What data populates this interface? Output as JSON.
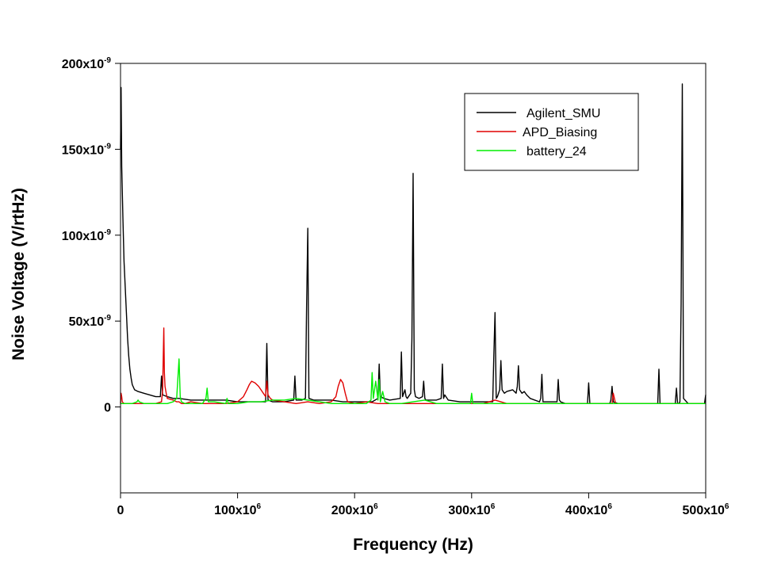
{
  "chart_data": {
    "type": "line",
    "xlabel": "Frequency (Hz)",
    "ylabel": "Noise Voltage (V/rtHz)",
    "xlim": [
      0,
      500000000
    ],
    "ylim": [
      -5e-08,
      2e-07
    ],
    "x_ticks": [
      {
        "value": 0,
        "mantissa": "0",
        "exp": ""
      },
      {
        "value": 100000000,
        "mantissa": "100x10",
        "exp": "6"
      },
      {
        "value": 200000000,
        "mantissa": "200x10",
        "exp": "6"
      },
      {
        "value": 300000000,
        "mantissa": "300x10",
        "exp": "6"
      },
      {
        "value": 400000000,
        "mantissa": "400x10",
        "exp": "6"
      },
      {
        "value": 500000000,
        "mantissa": "500x10",
        "exp": "6"
      }
    ],
    "y_ticks": [
      {
        "value": 0,
        "mantissa": "0",
        "exp": ""
      },
      {
        "value": 5e-08,
        "mantissa": "50x10",
        "exp": "-9"
      },
      {
        "value": 1e-07,
        "mantissa": "100x10",
        "exp": "-9"
      },
      {
        "value": 1.5e-07,
        "mantissa": "150x10",
        "exp": "-9"
      },
      {
        "value": 2e-07,
        "mantissa": "200x10",
        "exp": "-9"
      }
    ],
    "legend_position": "top-right",
    "grid": false,
    "series": [
      {
        "name": "Agilent_SMU",
        "color": "#000000",
        "x_mhz": [
          0,
          0.5,
          1,
          2,
          3,
          4,
          5,
          6,
          7,
          8,
          9,
          10,
          12,
          15,
          20,
          25,
          30,
          34,
          35,
          36,
          40,
          45,
          50,
          60,
          70,
          80,
          90,
          100,
          110,
          120,
          124,
          125,
          126,
          130,
          140,
          148,
          149,
          150,
          155,
          158,
          159,
          160,
          161,
          165,
          170,
          180,
          190,
          200,
          210,
          215,
          220,
          221,
          222,
          225,
          230,
          239,
          240,
          241,
          243,
          244,
          245,
          248,
          249,
          250,
          251,
          252,
          255,
          258,
          259,
          260,
          261,
          265,
          270,
          274,
          275,
          276,
          277,
          280,
          290,
          300,
          310,
          318,
          319,
          320,
          321,
          322,
          324,
          325,
          326,
          328,
          330,
          335,
          338,
          339,
          340,
          341,
          343,
          345,
          347,
          350,
          358,
          359,
          360,
          361,
          365,
          373,
          374,
          375,
          376,
          380,
          390,
          399,
          400,
          401,
          405,
          410,
          418,
          419,
          420,
          421,
          425,
          430,
          440,
          450,
          459,
          460,
          461,
          465,
          470,
          474,
          475,
          476,
          477,
          478,
          479,
          480,
          481,
          485,
          490,
          495,
          499,
          500
        ],
        "values_nv": [
          150,
          186,
          140,
          110,
          85,
          70,
          55,
          40,
          30,
          22,
          17,
          13,
          10,
          9,
          8,
          7,
          6,
          6,
          18,
          7,
          6,
          5,
          5,
          4,
          4,
          4,
          4,
          3,
          3,
          3,
          3,
          37,
          4,
          3,
          3,
          4,
          18,
          4,
          4,
          5,
          60,
          104,
          5,
          4,
          4,
          4,
          3,
          3,
          3,
          3,
          5,
          25,
          6,
          5,
          4,
          5,
          32,
          6,
          10,
          6,
          5,
          8,
          40,
          136,
          10,
          6,
          5,
          6,
          15,
          5,
          4,
          4,
          4,
          5,
          25,
          5,
          7,
          4,
          3,
          3,
          3,
          3,
          30,
          55,
          5,
          6,
          10,
          27,
          10,
          8,
          9,
          10,
          8,
          12,
          24,
          10,
          8,
          9,
          7,
          5,
          3,
          5,
          19,
          3,
          3,
          3,
          16,
          4,
          3,
          2,
          2,
          2,
          14,
          2,
          2,
          2,
          2,
          4,
          12,
          3,
          2,
          2,
          2,
          2,
          2,
          22,
          2,
          2,
          2,
          2,
          11,
          2,
          2,
          3,
          60,
          188,
          5,
          2,
          2,
          2,
          2,
          7
        ]
      },
      {
        "name": "APD_Biasing",
        "color": "#e00000",
        "x_mhz": [
          0,
          0.5,
          1,
          1.5,
          3,
          10,
          20,
          30,
          35,
          36,
          37,
          37.5,
          38,
          39,
          40,
          45,
          48,
          50,
          52,
          55,
          60,
          70,
          80,
          90,
          100,
          105,
          108,
          110,
          112,
          115,
          118,
          120,
          122,
          124,
          125,
          126,
          128,
          130,
          140,
          150,
          160,
          170,
          180,
          184,
          186,
          188,
          190,
          192,
          194,
          200,
          210,
          220,
          230,
          240,
          250,
          260,
          270,
          280,
          290,
          300,
          310,
          320,
          330,
          340,
          350,
          360,
          370,
          380,
          390,
          400,
          410,
          418,
          420,
          421,
          423,
          430,
          440,
          450,
          460,
          470,
          480,
          490,
          500
        ],
        "values_nv": [
          2,
          8,
          6,
          3,
          2,
          2,
          2,
          2,
          3,
          10,
          46,
          20,
          12,
          8,
          5,
          4,
          3,
          3,
          2,
          2,
          3,
          2,
          2,
          2,
          3,
          6,
          10,
          13,
          15,
          14,
          12,
          10,
          8,
          6,
          15,
          7,
          5,
          4,
          3,
          2,
          3,
          2,
          3,
          6,
          12,
          16,
          14,
          8,
          3,
          2,
          3,
          2,
          2,
          2,
          2,
          2,
          2,
          2,
          2,
          2,
          2,
          4,
          2,
          2,
          2,
          2,
          2,
          2,
          2,
          2,
          2,
          2,
          2,
          8,
          2,
          2,
          2,
          2,
          2,
          2,
          2,
          2,
          2
        ]
      },
      {
        "name": "battery_24",
        "color": "#00ee00",
        "x_mhz": [
          0,
          1,
          5,
          10,
          14,
          15,
          16,
          20,
          25,
          30,
          40,
          45,
          48,
          50,
          51,
          52,
          55,
          60,
          70,
          73,
          74,
          75,
          80,
          90,
          91,
          92,
          100,
          110,
          120,
          130,
          140,
          150,
          160,
          170,
          180,
          200,
          210,
          214,
          215,
          216,
          218,
          220,
          221,
          222,
          224,
          226,
          230,
          240,
          250,
          260,
          270,
          280,
          290,
          299,
          300,
          301,
          310,
          320,
          330,
          340,
          350,
          360,
          370,
          380,
          390,
          400,
          410,
          420,
          430,
          440,
          450,
          460,
          470,
          480,
          490,
          500
        ],
        "values_nv": [
          2,
          2,
          2,
          2,
          3,
          4,
          3,
          2,
          2,
          2,
          2,
          3,
          5,
          28,
          6,
          3,
          2,
          2,
          2,
          5,
          11,
          3,
          3,
          2,
          5,
          2,
          2,
          3,
          3,
          4,
          4,
          5,
          4,
          3,
          2,
          2,
          2,
          4,
          20,
          5,
          15,
          4,
          16,
          3,
          9,
          3,
          2,
          2,
          3,
          4,
          2,
          2,
          2,
          2,
          8,
          2,
          2,
          2,
          2,
          2,
          2,
          2,
          2,
          2,
          2,
          2,
          2,
          2,
          2,
          2,
          2,
          2,
          2,
          2,
          2,
          2
        ]
      }
    ]
  }
}
